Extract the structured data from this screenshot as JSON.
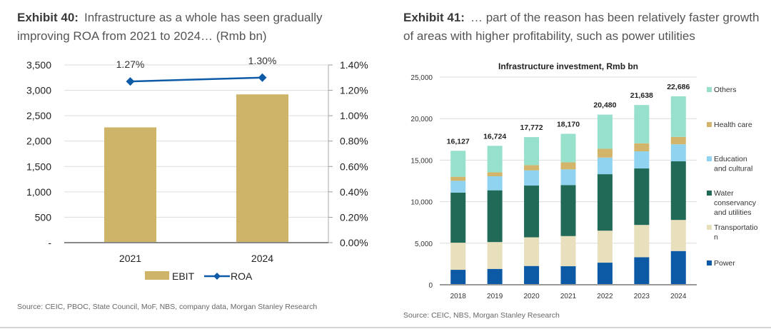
{
  "exhibits": {
    "left": {
      "label": "Exhibit 40:",
      "text": "Infrastructure as a whole has seen gradually improving ROA from 2021 to 2024… (Rmb bn)",
      "source": "Source: CEIC, PBOC, State Council, MoF, NBS, company data, Morgan Stanley Research"
    },
    "right": {
      "label": "Exhibit 41:",
      "text": "… part of the reason has been relatively faster growth of areas with higher profitability, such as power utilities",
      "source": "Source: CEIC, NBS, Morgan Stanley Research"
    }
  },
  "chart_data": [
    {
      "type": "bar",
      "title": "",
      "categories": [
        "2021",
        "2024"
      ],
      "series": [
        {
          "name": "EBIT",
          "kind": "bar",
          "axis": "left",
          "color": "#cdb469",
          "values": [
            2270,
            2920
          ]
        },
        {
          "name": "ROA",
          "kind": "line",
          "axis": "right",
          "color": "#0d5aa7",
          "values": [
            1.27,
            1.3
          ],
          "labels": [
            "1.27%",
            "1.30%"
          ]
        }
      ],
      "ylim": [
        0,
        3500
      ],
      "yticks": [
        0,
        500,
        1000,
        1500,
        2000,
        2500,
        3000,
        3500
      ],
      "ytick_labels": [
        "-",
        "500",
        "1,000",
        "1,500",
        "2,000",
        "2,500",
        "3,000",
        "3,500"
      ],
      "y2lim": [
        0,
        1.4
      ],
      "y2ticks": [
        0,
        0.2,
        0.4,
        0.6,
        0.8,
        1.0,
        1.2,
        1.4
      ],
      "y2tick_labels": [
        "0.00%",
        "0.20%",
        "0.40%",
        "0.60%",
        "0.80%",
        "1.00%",
        "1.20%",
        "1.40%"
      ],
      "xlabel": "",
      "ylabel": "",
      "grid": true,
      "legend": {
        "placement": "bottom",
        "entries": [
          "EBIT",
          "ROA"
        ]
      }
    },
    {
      "type": "bar",
      "stacked": true,
      "title": "Infrastructure investment, Rmb bn",
      "categories": [
        "2018",
        "2019",
        "2020",
        "2021",
        "2022",
        "2023",
        "2024"
      ],
      "totals": [
        16127,
        16724,
        17772,
        18170,
        20480,
        21638,
        22686
      ],
      "total_labels": [
        "16,127",
        "16,724",
        "17,772",
        "18,170",
        "20,480",
        "21,638",
        "22,686"
      ],
      "series": [
        {
          "name": "Power",
          "color": "#0c5aa6",
          "values": [
            1800,
            1910,
            2260,
            2230,
            2660,
            3310,
            4060
          ]
        },
        {
          "name": "Transportation",
          "color": "#e8dfbd",
          "values": [
            3260,
            3230,
            3450,
            3630,
            3850,
            3890,
            3740
          ]
        },
        {
          "name": "Water conservancy and utilities",
          "color": "#226a58",
          "values": [
            6030,
            6230,
            6230,
            6140,
            6800,
            6800,
            7060
          ]
        },
        {
          "name": "Education and cultural",
          "color": "#8fd3f0",
          "values": [
            1420,
            1690,
            1830,
            1890,
            2000,
            2060,
            2050
          ]
        },
        {
          "name": "Health care",
          "color": "#d2b56a",
          "values": [
            490,
            480,
            630,
            850,
            1060,
            970,
            890
          ]
        },
        {
          "name": "Others",
          "color": "#96e0cc",
          "values": [
            3127,
            3184,
            3372,
            3430,
            4110,
            4608,
            4886
          ]
        }
      ],
      "legend": {
        "placement": "right",
        "entries": [
          {
            "lines": [
              "Others"
            ],
            "color": "#96e0cc"
          },
          {
            "lines": [
              "Health care"
            ],
            "color": "#d2b56a"
          },
          {
            "lines": [
              "Education",
              "and cultural"
            ],
            "color": "#8fd3f0"
          },
          {
            "lines": [
              "Water",
              "conservancy",
              "and utilities"
            ],
            "color": "#226a58"
          },
          {
            "lines": [
              "Transportatio",
              "n"
            ],
            "color": "#e8dfbd"
          },
          {
            "lines": [
              "Power"
            ],
            "color": "#0c5aa6"
          }
        ]
      },
      "ylim": [
        0,
        25000
      ],
      "yticks": [
        0,
        5000,
        10000,
        15000,
        20000,
        25000
      ],
      "ytick_labels": [
        "0",
        "5,000",
        "10,000",
        "15,000",
        "20,000",
        "25,000"
      ],
      "xlabel": "",
      "ylabel": "",
      "grid": true
    }
  ]
}
